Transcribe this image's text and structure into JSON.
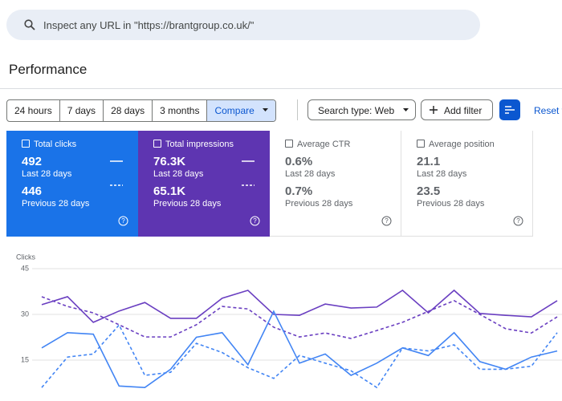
{
  "search": {
    "placeholder": "Inspect any URL in \"https://brantgroup.co.uk/\""
  },
  "header": {
    "title": "Performance"
  },
  "filters": {
    "ranges": [
      "24 hours",
      "7 days",
      "28 days",
      "3 months",
      "Compare"
    ],
    "search_type": "Search type: Web",
    "add_filter": "Add filter",
    "reset": "Reset f"
  },
  "cards": [
    {
      "label": "Total clicks",
      "current": "492",
      "current_label": "Last 28 days",
      "previous": "446",
      "previous_label": "Previous 28 days"
    },
    {
      "label": "Total impressions",
      "current": "76.3K",
      "current_label": "Last 28 days",
      "previous": "65.1K",
      "previous_label": "Previous 28 days"
    },
    {
      "label": "Average CTR",
      "current": "0.6%",
      "current_label": "Last 28 days",
      "previous": "0.7%",
      "previous_label": "Previous 28 days"
    },
    {
      "label": "Average position",
      "current": "21.1",
      "current_label": "Last 28 days",
      "previous": "23.5",
      "previous_label": "Previous 28 days"
    }
  ],
  "chart_data": {
    "type": "line",
    "y_label": "Clicks",
    "categories": [
      null,
      null,
      null,
      null,
      null,
      null,
      null,
      null,
      null,
      null,
      null,
      null,
      null,
      null,
      null,
      null,
      null,
      null,
      null,
      null,
      null
    ],
    "ylim": [
      0,
      45
    ],
    "yticks": [
      45,
      30,
      15
    ],
    "y2lim": [
      0,
      4500
    ],
    "grid": true,
    "series": [
      {
        "color": "#6a3fc1",
        "style": "solid",
        "axis": "y2",
        "values": [
          3320,
          3580,
          2740,
          3110,
          3390,
          2870,
          2870,
          3530,
          3790,
          3000,
          2970,
          3340,
          3210,
          3240,
          3790,
          3050,
          3790,
          3030,
          2970,
          2920,
          3450
        ]
      },
      {
        "color": "#6a3fc1",
        "style": "dashed",
        "axis": "y2",
        "values": [
          3580,
          3260,
          3050,
          2660,
          2260,
          2260,
          2660,
          3260,
          3180,
          2580,
          2260,
          2390,
          2210,
          2470,
          2740,
          3100,
          3450,
          3000,
          2530,
          2390,
          2920
        ]
      },
      {
        "color": "#4285f4",
        "style": "solid",
        "values": [
          19,
          24,
          23.5,
          6.5,
          6,
          12,
          22.5,
          24,
          13.5,
          31,
          14,
          17,
          10,
          14,
          19,
          16.5,
          24,
          14.5,
          12,
          16,
          18
        ]
      },
      {
        "color": "#4285f4",
        "style": "dashed",
        "values": [
          6,
          16,
          17,
          26.5,
          10,
          11,
          20.5,
          17.5,
          12.5,
          9,
          16.5,
          14,
          11.5,
          6,
          19,
          18,
          20,
          12,
          12,
          13,
          24
        ]
      }
    ]
  }
}
